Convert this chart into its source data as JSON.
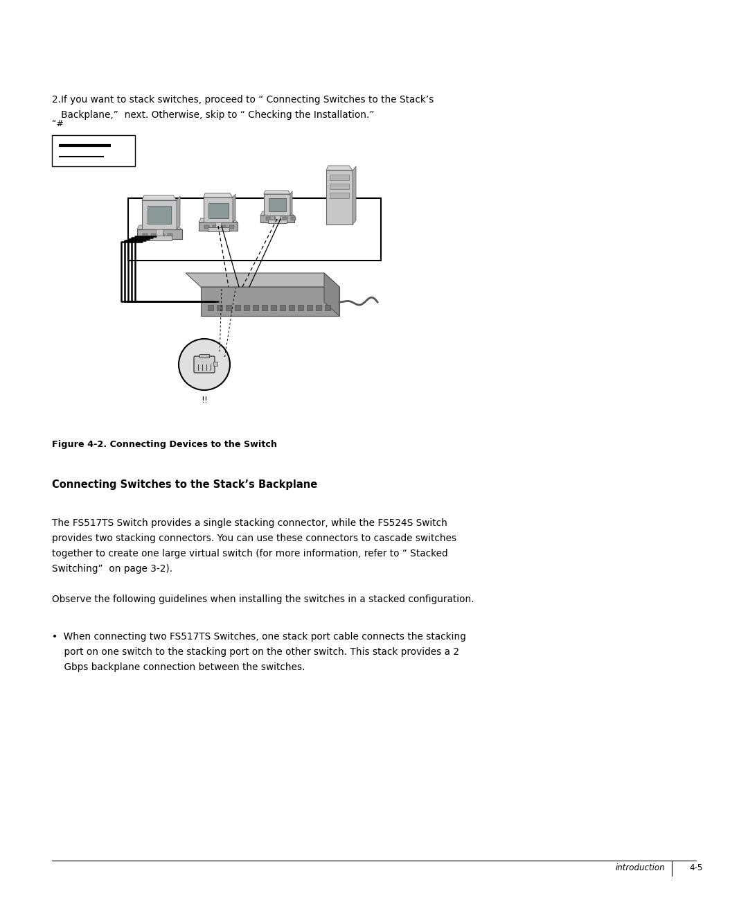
{
  "bg_color": "#ffffff",
  "text_color": "#000000",
  "page_width": 10.8,
  "page_height": 12.96,
  "step2_line1": "2.If you want to stack switches, proceed to “ Connecting Switches to the Stack’s",
  "step2_line2": "   Backplane,”  next. Otherwise, skip to “ Checking the Installation.”",
  "legend_label": "“#",
  "callout_label": "!!",
  "figure_caption": "Figure 4-2. Connecting Devices to the Switch",
  "section_heading": "Connecting Switches to the Stack’s Backplane",
  "para1_line1": "The FS517TS Switch provides a single stacking connector, while the FS524S Switch",
  "para1_line2": "provides two stacking connectors. You can use these connectors to cascade switches",
  "para1_line3": "together to create one large virtual switch (for more information, refer to “ Stacked",
  "para1_line4": "Switching”  on page 3-2).",
  "para2": "Observe the following guidelines when installing the switches in a stacked configuration.",
  "bullet_line1": "•  When connecting two FS517TS Switches, one stack port cable connects the stacking",
  "bullet_line2": "    port on one switch to the stacking port on the other switch. This stack provides a 2",
  "bullet_line3": "    Gbps backplane connection between the switches.",
  "footer_left": "introduction",
  "footer_right": "4-5"
}
